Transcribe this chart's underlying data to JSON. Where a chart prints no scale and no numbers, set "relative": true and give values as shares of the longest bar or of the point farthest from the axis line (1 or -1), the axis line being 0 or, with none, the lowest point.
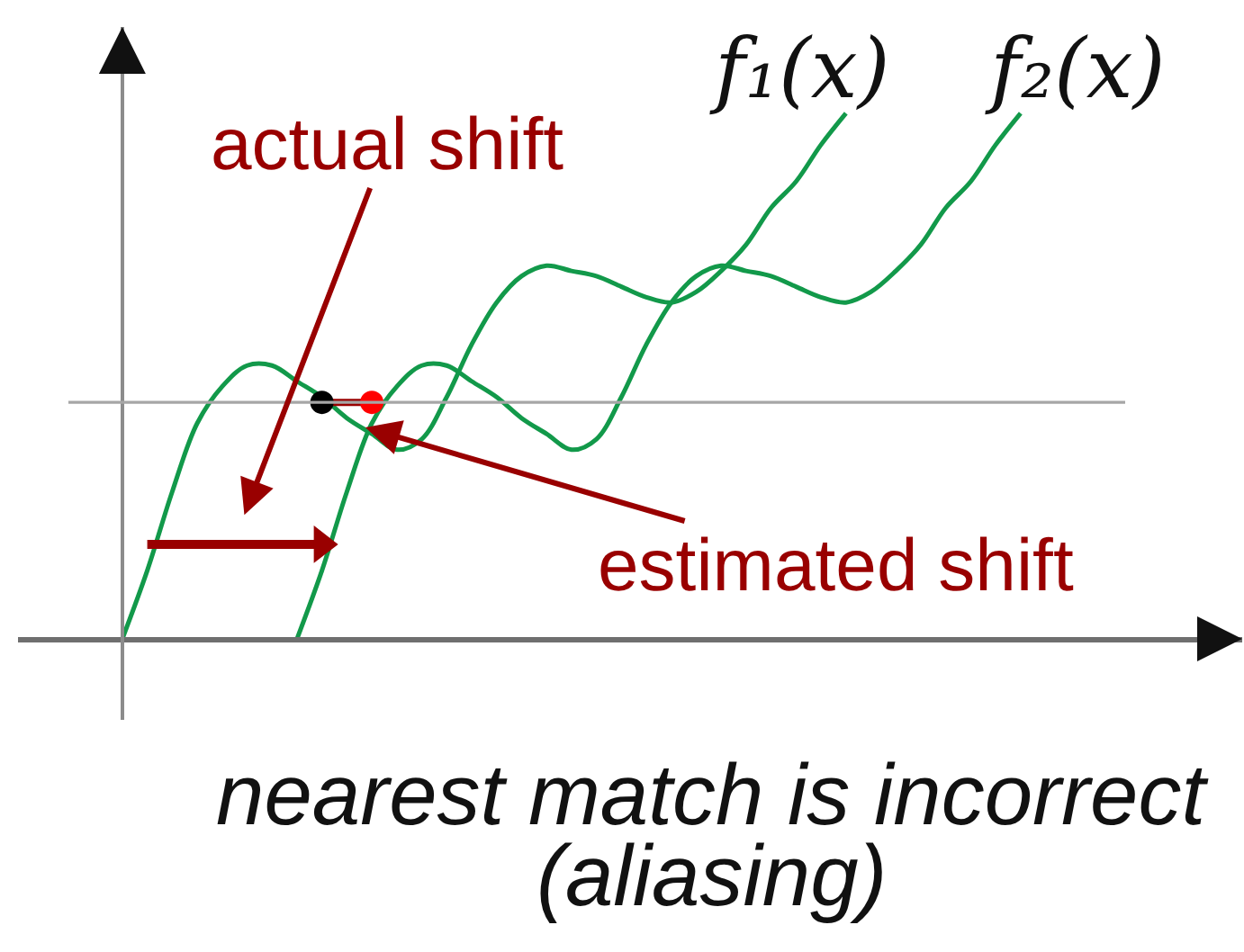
{
  "chart_data": {
    "type": "line",
    "relative": true,
    "legend": false,
    "categories": [
      null,
      null,
      null,
      null,
      null,
      null,
      null,
      null,
      null,
      null,
      null,
      null,
      null,
      null,
      null,
      null,
      null,
      null,
      null,
      null,
      null,
      null,
      null,
      null,
      null,
      null,
      null,
      null,
      null,
      null,
      null,
      null,
      null,
      null,
      null,
      null,
      null
    ],
    "series": [
      {
        "name": "f₁(x)",
        "color": "#12994a",
        "values": [
          0,
          0.13,
          0.28,
          0.41,
          0.48,
          0.52,
          0.52,
          0.49,
          0.46,
          0.42,
          0.39,
          0.36,
          0.38,
          0.46,
          0.56,
          0.64,
          0.69,
          0.71,
          0.7,
          0.69,
          0.67,
          0.65,
          0.64,
          0.66,
          0.7,
          0.75,
          0.82,
          0.87,
          0.94,
          1.0,
          null,
          null,
          null,
          null,
          null,
          null,
          null
        ]
      },
      {
        "name": "f₂(x)",
        "color": "#12994a",
        "values": [
          null,
          null,
          null,
          null,
          null,
          null,
          null,
          0,
          0.13,
          0.28,
          0.41,
          0.48,
          0.52,
          0.52,
          0.49,
          0.46,
          0.42,
          0.39,
          0.36,
          0.38,
          0.46,
          0.56,
          0.64,
          0.69,
          0.71,
          0.7,
          0.69,
          0.67,
          0.65,
          0.64,
          0.66,
          0.7,
          0.75,
          0.82,
          0.87,
          0.94,
          1.0
        ]
      },
      {
        "color": "#990000",
        "marker": "circle",
        "values": [
          null,
          null,
          null,
          null,
          null,
          null,
          null,
          null,
          0.45,
          null,
          0.45,
          null,
          null,
          null,
          null,
          null,
          null,
          null,
          null,
          null,
          null,
          null,
          null,
          null,
          null,
          null,
          null,
          null,
          null,
          null,
          null,
          null,
          null,
          null,
          null,
          null,
          null
        ],
        "colors": [
          null,
          null,
          null,
          null,
          null,
          null,
          null,
          null,
          "#000000",
          null,
          "#ff0000",
          null,
          null,
          null,
          null,
          null,
          null,
          null,
          null,
          null,
          null,
          null,
          null,
          null,
          null,
          null,
          null,
          null,
          null,
          null,
          null,
          null,
          null,
          null,
          null,
          null,
          null
        ]
      },
      {
        "color": "#990000",
        "marker": "triangle",
        "values": [
          null,
          0.18,
          null,
          null,
          null,
          null,
          null,
          null,
          0.18,
          null,
          null,
          null,
          null,
          null,
          null,
          null,
          null,
          null,
          null,
          null,
          null,
          null,
          null,
          null,
          null,
          null,
          null,
          null,
          null,
          null,
          null,
          null,
          null,
          null,
          null,
          null,
          null
        ]
      }
    ],
    "ref_lines": [
      {
        "axis": "y",
        "value": 0.45,
        "color": "#a6a6a6"
      }
    ],
    "annotations": [
      "actual shift",
      "estimated shift",
      "nearest match is incorrect\n(aliasing)"
    ]
  }
}
